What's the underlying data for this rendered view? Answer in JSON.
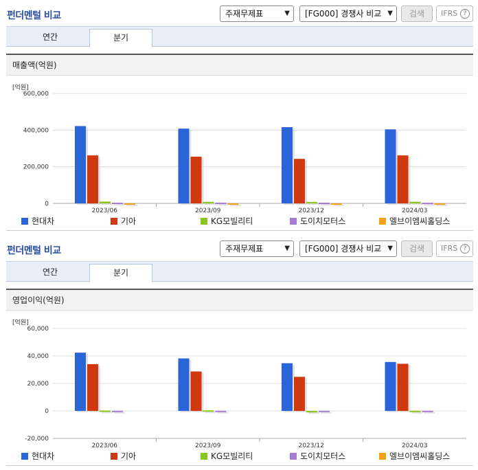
{
  "sections": [
    {
      "title": "펀더멘털 비교",
      "select_statement": "주재무제표",
      "select_compare": "[FG000] 경쟁사 비교",
      "search_label": "검색",
      "ifrs_label": "IFRS",
      "tabs": [
        "연간",
        "분기"
      ],
      "chart_title": "매출액(억원)",
      "unit": "[억원]"
    },
    {
      "title": "펀더멘털 비교",
      "select_statement": "주재무제표",
      "select_compare": "[FG000] 경쟁사 비교",
      "search_label": "검색",
      "ifrs_label": "IFRS",
      "tabs": [
        "연간",
        "분기"
      ],
      "chart_title": "영업이익(억원)",
      "unit": "[억원]"
    }
  ],
  "help_icon": "?",
  "legend": [
    {
      "name": "현대차",
      "color": "#2b63d9"
    },
    {
      "name": "기아",
      "color": "#d0390f"
    },
    {
      "name": "KG모빌리티",
      "color": "#8ac61d"
    },
    {
      "name": "도이치모터스",
      "color": "#a77bd6"
    },
    {
      "name": "엘브이엠씨홀딩스",
      "color": "#f3a10c"
    }
  ],
  "chart_data": [
    {
      "type": "bar",
      "title": "매출액(억원)",
      "ylabel": "[억원]",
      "categories": [
        "2023/06",
        "2023/09",
        "2023/12",
        "2024/03"
      ],
      "ylim": [
        0,
        600000
      ],
      "yticks": [
        "0",
        "200,000",
        "400,000",
        "600,000"
      ],
      "series": [
        {
          "name": "현대차",
          "values": [
            422000,
            408000,
            416000,
            404000
          ]
        },
        {
          "name": "기아",
          "values": [
            262000,
            255000,
            243000,
            262000
          ]
        },
        {
          "name": "KG모빌리티",
          "values": [
            9900,
            8300,
            8100,
            9000
          ]
        },
        {
          "name": "도이치모터스",
          "values": [
            3800,
            4000,
            3700,
            3600
          ]
        },
        {
          "name": "엘브이엠씨홀딩스",
          "values": [
            200,
            200,
            200,
            200
          ]
        }
      ]
    },
    {
      "type": "bar",
      "title": "영업이익(억원)",
      "ylabel": "[억원]",
      "categories": [
        "2023/06",
        "2023/09",
        "2023/12",
        "2024/03"
      ],
      "ylim": [
        -20000,
        60000
      ],
      "yticks": [
        "-20,000",
        "0",
        "20,000",
        "40,000",
        "60,000"
      ],
      "series": [
        {
          "name": "현대차",
          "values": [
            42400,
            38200,
            34700,
            35600
          ]
        },
        {
          "name": "기아",
          "values": [
            34000,
            28700,
            24800,
            34300
          ]
        },
        {
          "name": "KG모빌리티",
          "values": [
            300,
            400,
            -1100,
            100
          ]
        },
        {
          "name": "도이치모터스",
          "values": [
            100,
            100,
            100,
            100
          ]
        },
        {
          "name": "엘브이엠씨홀딩스",
          "values": [
            0,
            0,
            0,
            0
          ]
        }
      ]
    }
  ]
}
